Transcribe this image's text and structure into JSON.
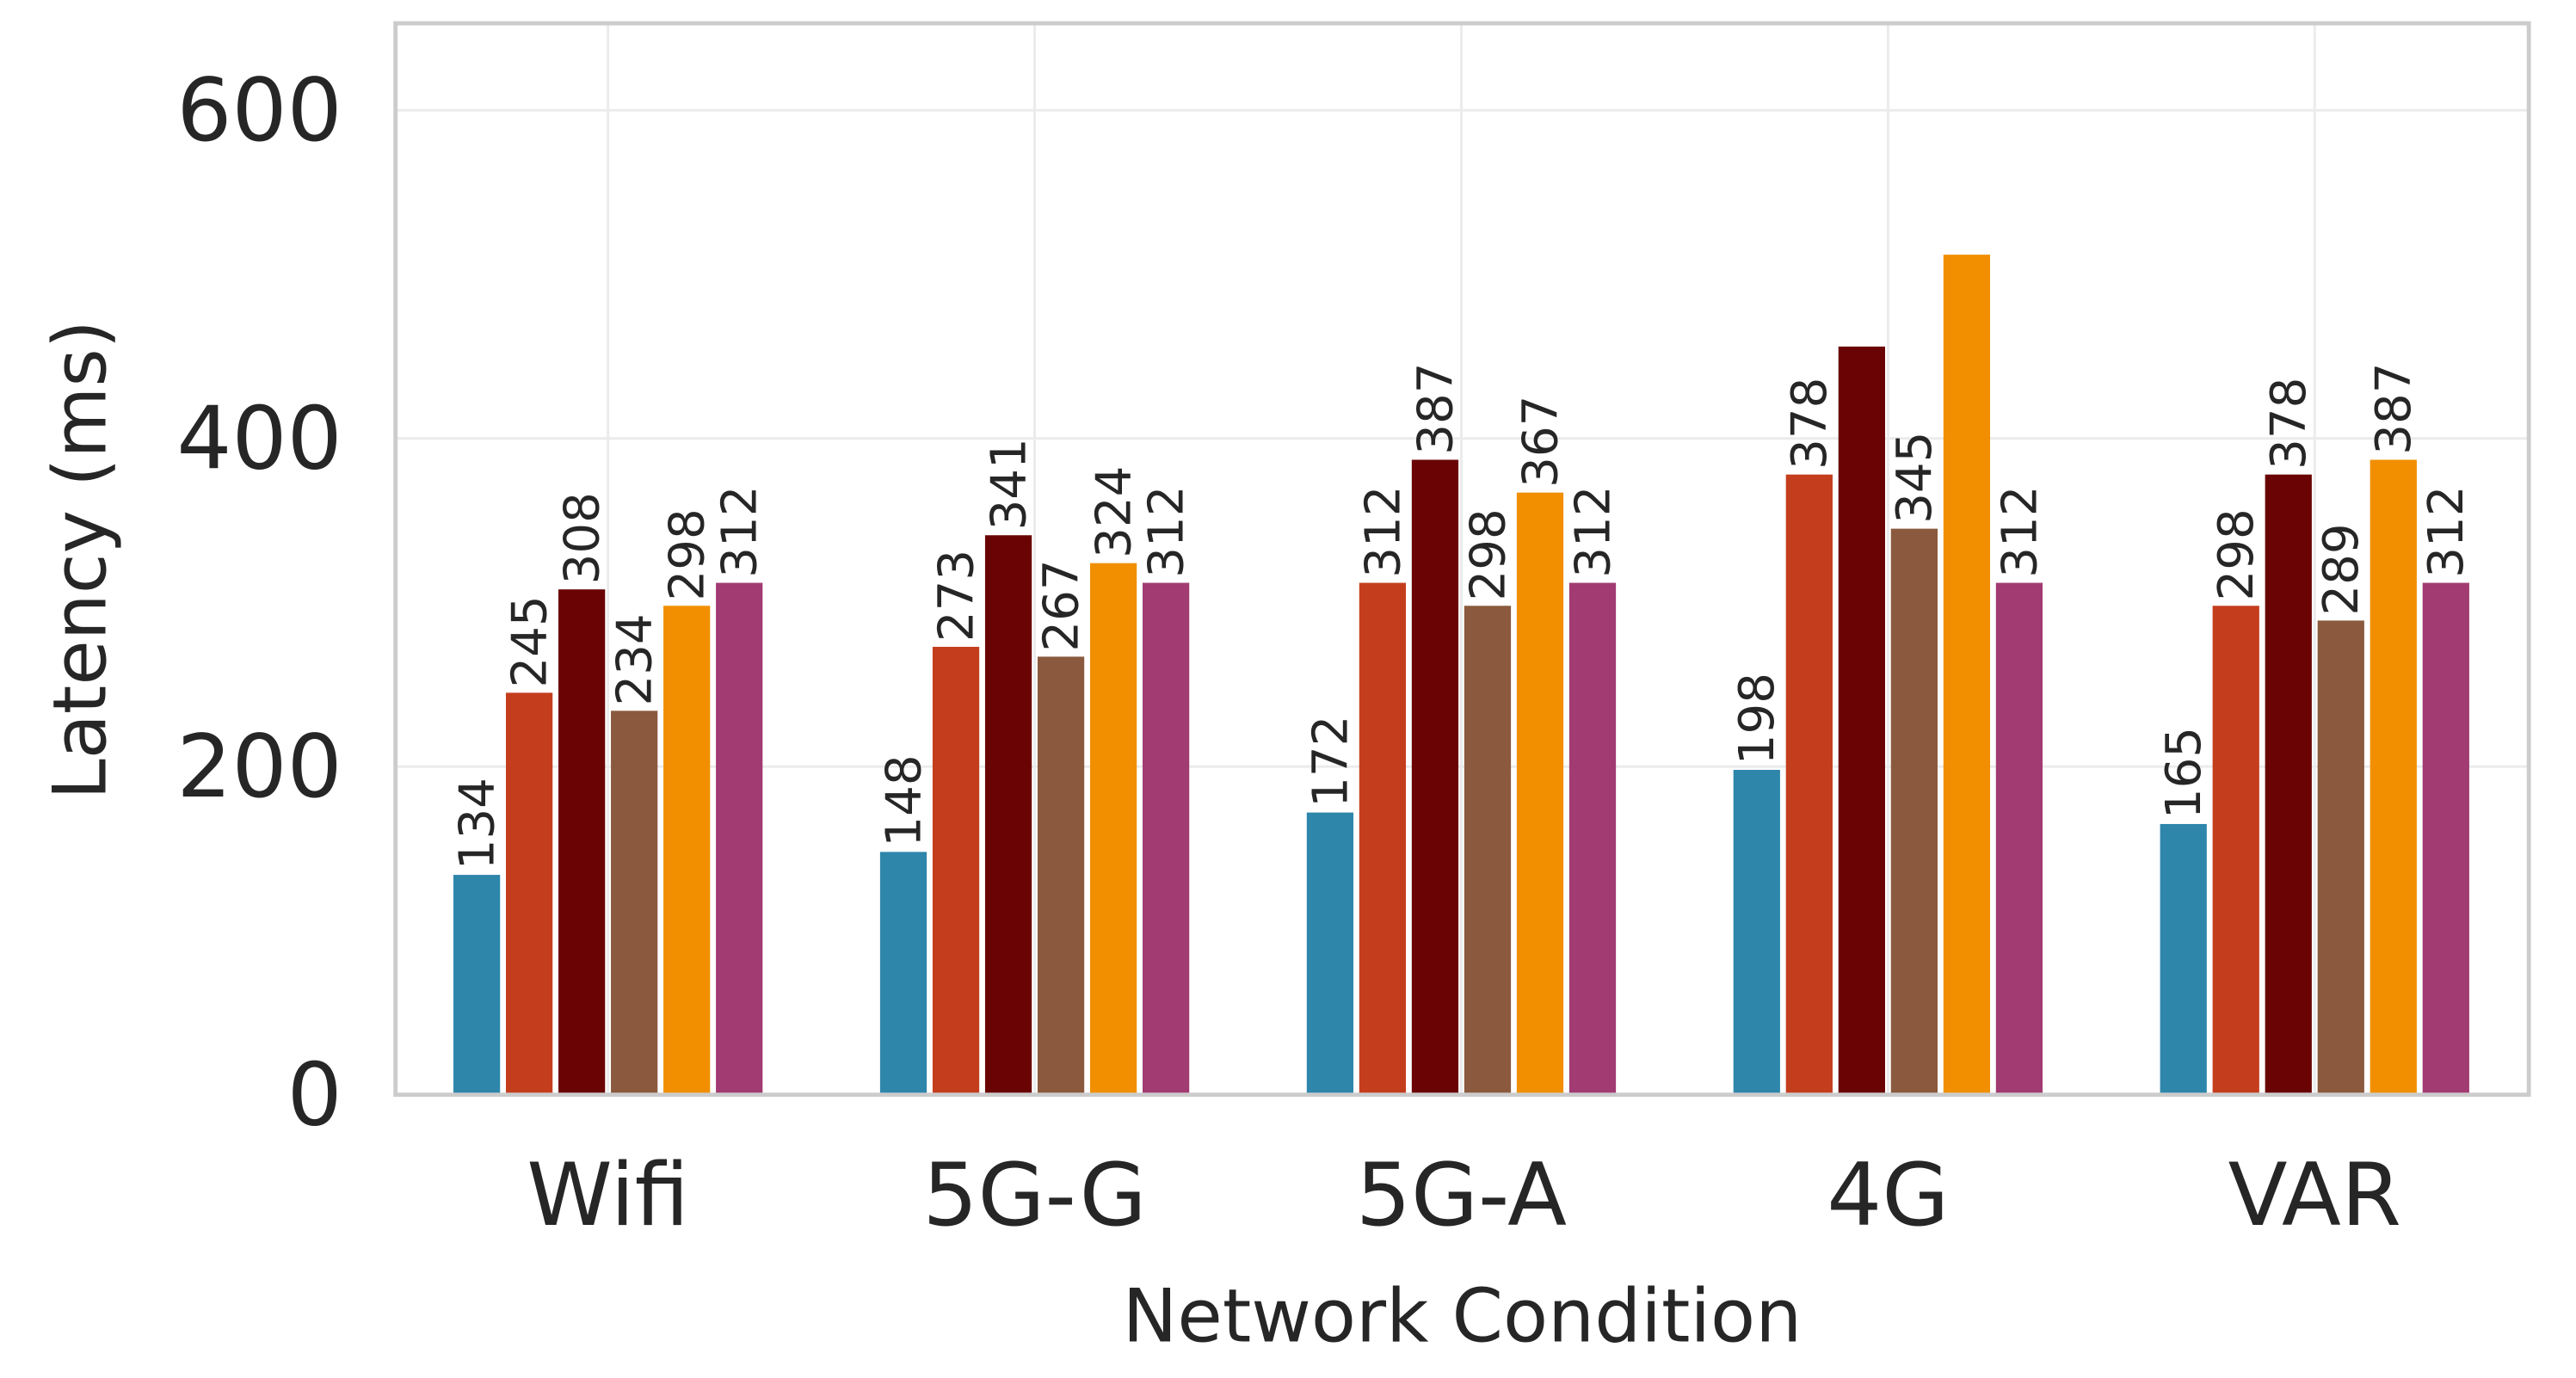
{
  "chart_data": {
    "type": "bar",
    "title": "",
    "xlabel": "Network Condition",
    "ylabel": "Latency (ms)",
    "ylim": [
      0,
      653
    ],
    "yticks": [
      0,
      200,
      400,
      600
    ],
    "grid": true,
    "legend": "none",
    "categories": [
      "Wifi",
      "5G-G",
      "5G-A",
      "4G",
      "VAR"
    ],
    "series": [
      {
        "color": "#2E86AB",
        "values": [
          134,
          148,
          172,
          198,
          165
        ],
        "labels": [
          "134",
          "148",
          "172",
          "198",
          "165"
        ]
      },
      {
        "color": "#C43E1E",
        "values": [
          245,
          273,
          312,
          378,
          298
        ],
        "labels": [
          "245",
          "273",
          "312",
          "378",
          "298"
        ]
      },
      {
        "color": "#6A0404",
        "values": [
          308,
          341,
          387,
          456,
          378
        ],
        "labels": [
          "308",
          "341",
          "387",
          "",
          "378"
        ]
      },
      {
        "color": "#8B5A3E",
        "values": [
          234,
          267,
          298,
          345,
          289
        ],
        "labels": [
          "234",
          "267",
          "298",
          "345",
          "289"
        ]
      },
      {
        "color": "#F18F01",
        "values": [
          298,
          324,
          367,
          512,
          387
        ],
        "labels": [
          "298",
          "324",
          "367",
          "",
          "387"
        ]
      },
      {
        "color": "#A23B72",
        "values": [
          312,
          312,
          312,
          312,
          312
        ],
        "labels": [
          "312",
          "312",
          "312",
          "312",
          "312"
        ]
      }
    ]
  }
}
